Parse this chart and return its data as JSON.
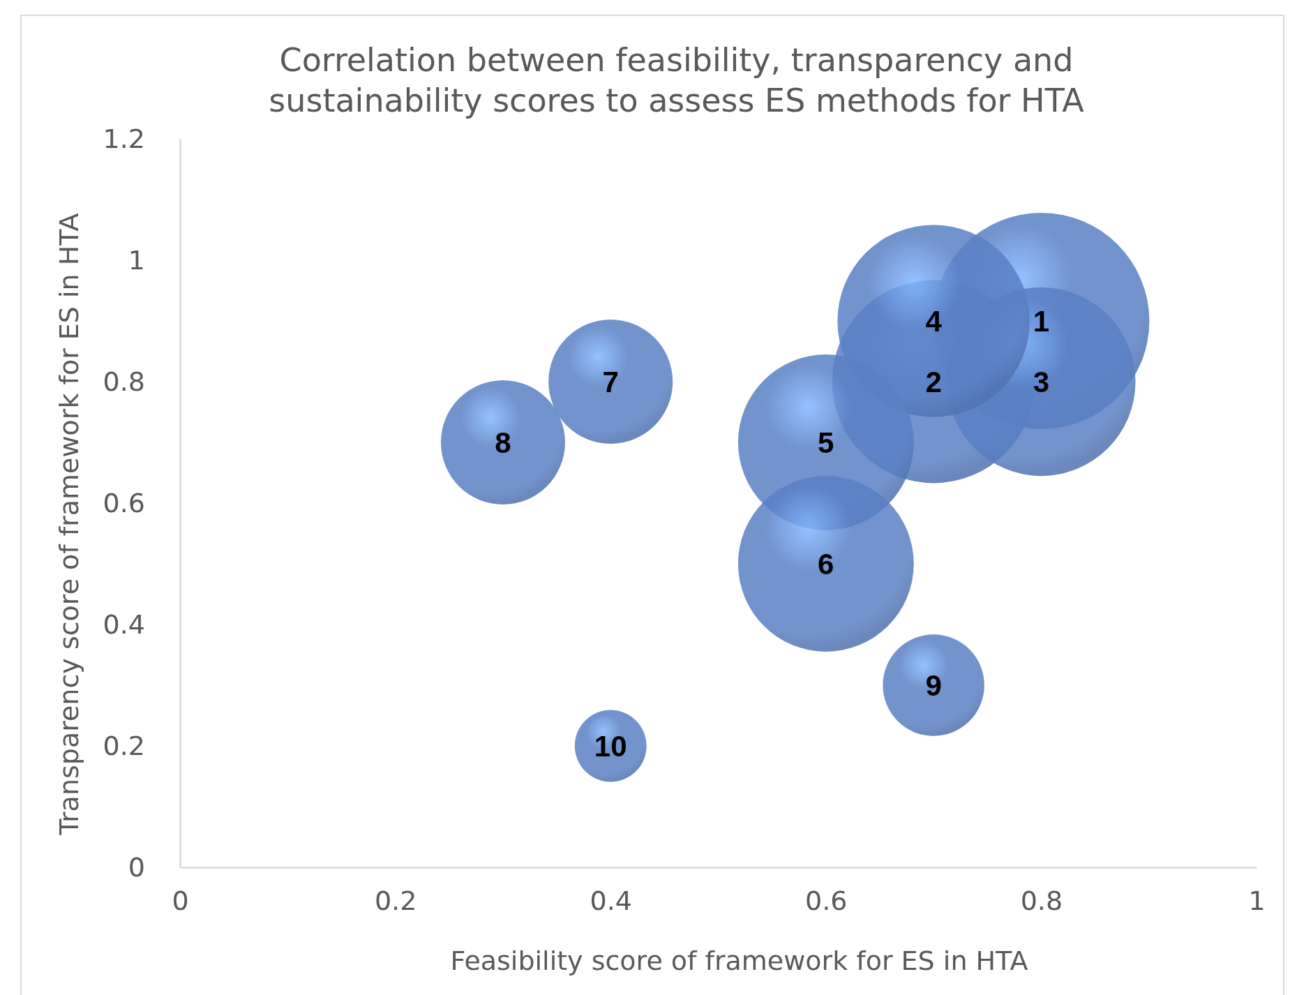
{
  "chart_data": {
    "type": "bubble",
    "title": "Correlation between feasibility, transparency and sustainability scores to assess ES methods for HTA",
    "xlabel": "Feasibility score of framework for ES in HTA",
    "ylabel": "Transparency score of  framework for ES in HTA",
    "x": [
      0.8,
      0.7,
      0.8,
      0.7,
      0.6,
      0.6,
      0.4,
      0.3,
      0.7,
      0.4
    ],
    "series": [
      {
        "color": "#5a80c4",
        "values": [
          0.9,
          0.8,
          0.8,
          0.9,
          0.7,
          0.5,
          0.8,
          0.7,
          0.3,
          0.2
        ],
        "sizes": [
          1,
          0.88,
          0.76,
          0.79,
          0.66,
          0.66,
          0.33,
          0.33,
          0.22,
          0.11
        ]
      }
    ],
    "annotations": [
      {
        "text": "1",
        "x": 0.8,
        "y": 0.9
      },
      {
        "text": "2",
        "x": 0.7,
        "y": 0.8
      },
      {
        "text": "3",
        "x": 0.8,
        "y": 0.8
      },
      {
        "text": "4",
        "x": 0.7,
        "y": 0.9
      },
      {
        "text": "5",
        "x": 0.6,
        "y": 0.7
      },
      {
        "text": "6",
        "x": 0.6,
        "y": 0.5
      },
      {
        "text": "7",
        "x": 0.4,
        "y": 0.8
      },
      {
        "text": "8",
        "x": 0.3,
        "y": 0.7
      },
      {
        "text": "9",
        "x": 0.7,
        "y": 0.3
      },
      {
        "text": "10",
        "x": 0.4,
        "y": 0.2
      }
    ],
    "xlim": [
      0,
      1
    ],
    "xticks": [
      0,
      0.2,
      0.4,
      0.6,
      0.8,
      1
    ],
    "ylim": [
      0,
      1.2
    ],
    "yticks": [
      0,
      0.2,
      0.4,
      0.6,
      0.8,
      1,
      1.2
    ],
    "grid": false
  }
}
